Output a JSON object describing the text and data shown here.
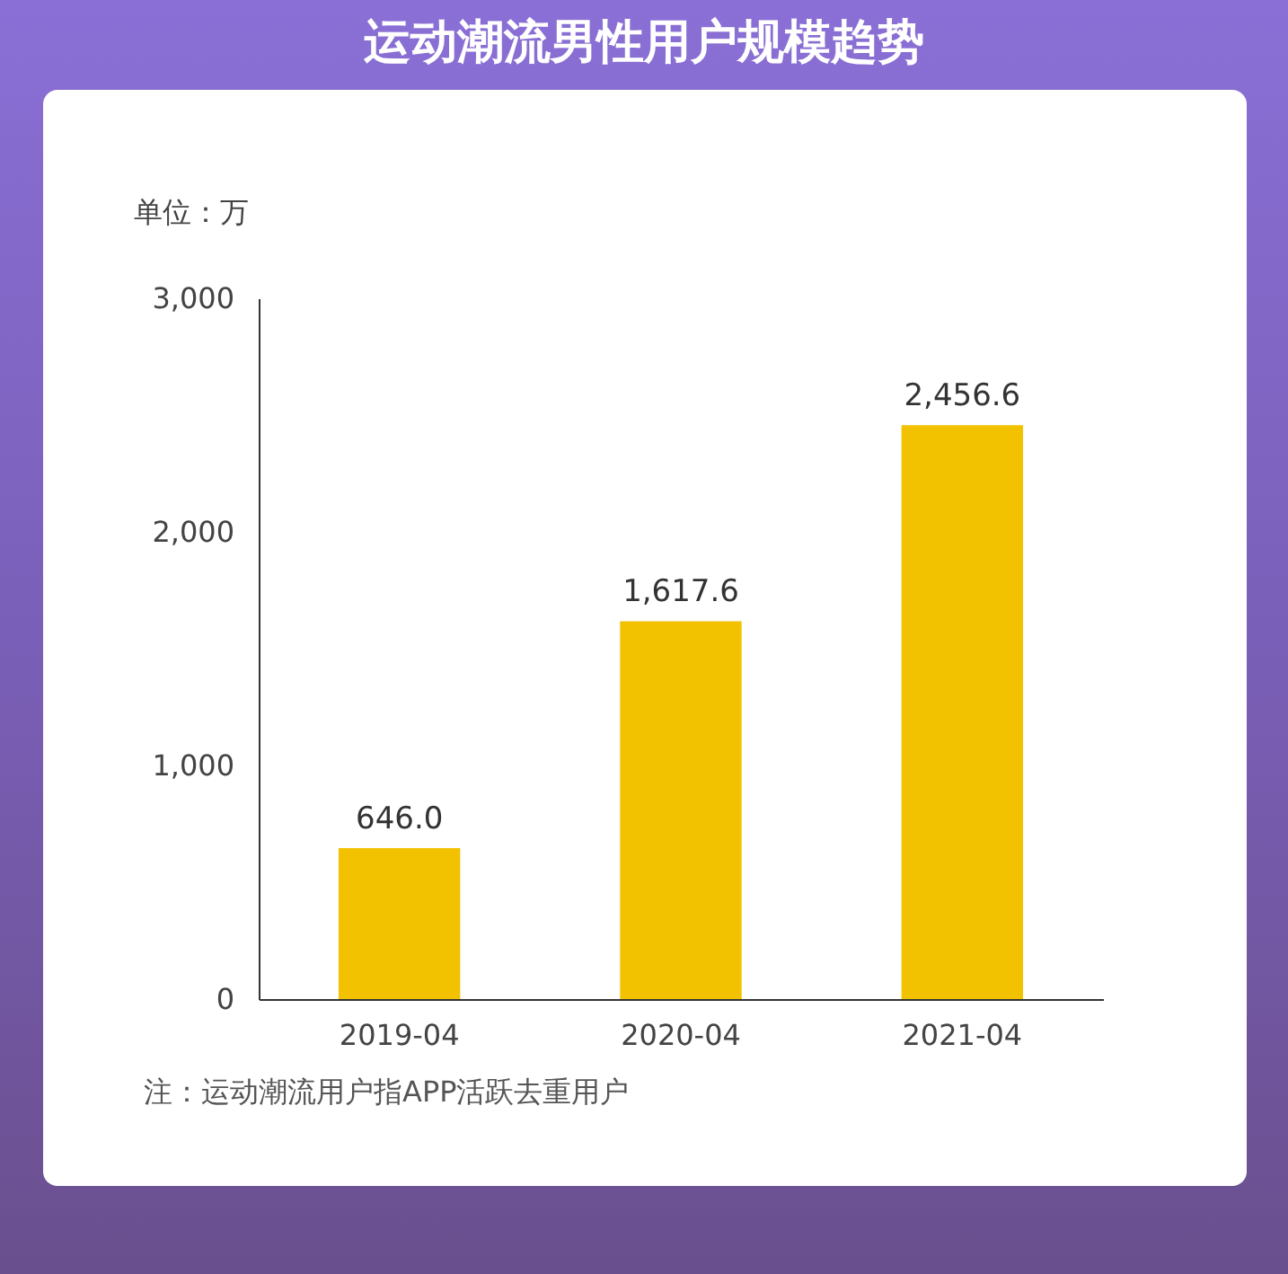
{
  "chart_data": {
    "type": "bar",
    "title": "运动潮流男性用户规模趋势",
    "ylabel": "单位：万",
    "categories": [
      "2019-04",
      "2020-04",
      "2021-04"
    ],
    "values": [
      646.0,
      1617.6,
      2456.6
    ],
    "color": "#f2c200",
    "value_labels": [
      "646.0",
      "1,617.6",
      "2,456.6"
    ],
    "ylim": [
      0,
      3000
    ],
    "yticks": [
      0,
      {
        "value": 1000,
        "label": "1,000"
      },
      {
        "value": 2000,
        "label": "2,000"
      },
      {
        "value": 3000,
        "label": "3,000"
      }
    ],
    "grid": false,
    "annotations": [
      "注：运动潮流用户指APP活跃去重用户"
    ]
  }
}
